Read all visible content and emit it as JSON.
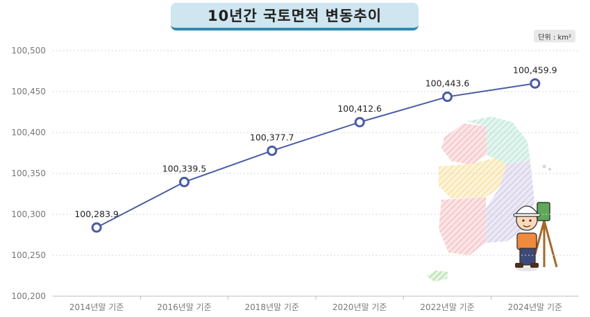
{
  "title": "10년간 국토면적 변동추이",
  "unit": "단위 : km²",
  "colors": {
    "line": "#4a5ba6",
    "marker_fill": "#ffffff",
    "title_bg": "#cfe5f0",
    "title_border": "#2e8bb0"
  },
  "chart_data": {
    "type": "line",
    "title": "10년간 국토면적 변동추이",
    "categories": [
      "2014년말 기준",
      "2016년말 기준",
      "2018년말 기준",
      "2020년말 기준",
      "2022년말 기준",
      "2024년말 기준"
    ],
    "values": [
      100283.9,
      100339.5,
      100377.7,
      100412.6,
      100443.6,
      100459.9
    ],
    "value_labels": [
      "100,283.9",
      "100,339.5",
      "100,377.7",
      "100,412.6",
      "100,443.6",
      "100,459.9"
    ],
    "yticks": [
      "100,200",
      "100,250",
      "100,300",
      "100,350",
      "100,400",
      "100,450",
      "100,500"
    ],
    "ylim": [
      100200,
      100500
    ],
    "ytick_values": [
      100200,
      100250,
      100300,
      100350,
      100400,
      100450,
      100500
    ],
    "grid": true,
    "xlabel": "",
    "ylabel": ""
  },
  "decoration": {
    "illustration": "korea-map-surveyor-icon"
  }
}
